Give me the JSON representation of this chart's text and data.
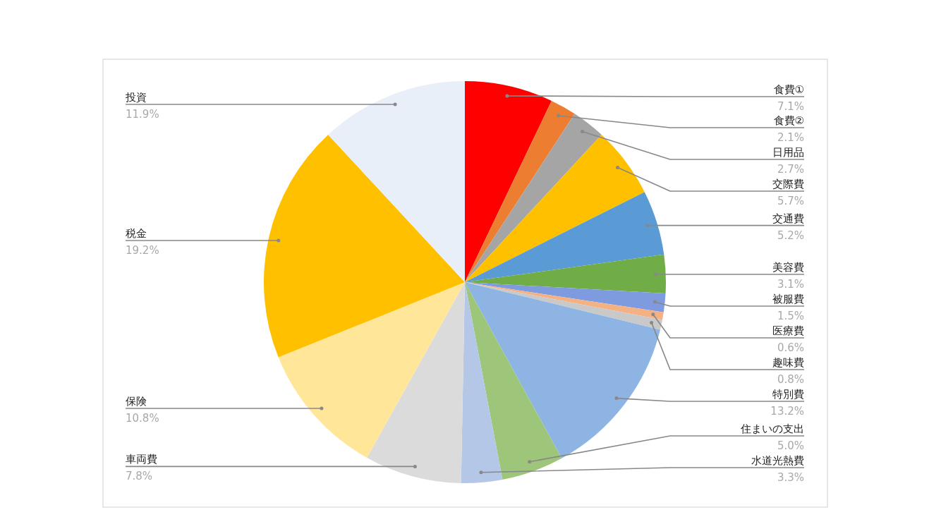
{
  "chart_data": {
    "type": "pie",
    "categories": [
      "食費①",
      "食費②",
      "日用品",
      "交際費",
      "交通費",
      "美容費",
      "被服費",
      "医療費",
      "趣味費",
      "特別費",
      "住まいの支出",
      "水道光熱費",
      "車両費",
      "保険",
      "税金",
      "投資"
    ],
    "values": [
      7.1,
      2.1,
      2.7,
      5.7,
      5.2,
      3.1,
      1.5,
      0.6,
      0.8,
      13.2,
      5.0,
      3.3,
      7.8,
      10.8,
      19.2,
      11.9
    ],
    "value_labels": [
      "7.1%",
      "2.1%",
      "2.7%",
      "5.7%",
      "5.2%",
      "3.1%",
      "1.5%",
      "0.6%",
      "0.8%",
      "13.2%",
      "5.0%",
      "3.3%",
      "7.8%",
      "10.8%",
      "19.2%",
      "11.9%"
    ],
    "colors": [
      "#ff0000",
      "#ed7d31",
      "#a5a5a5",
      "#ffc000",
      "#5b9bd5",
      "#70ad47",
      "#7f9be0",
      "#f4b183",
      "#c9c9c9",
      "#8db4e2",
      "#9dc67a",
      "#b4c7e7",
      "#dbdbdb",
      "#ffe699",
      "#ffc000",
      "#e9eff9"
    ]
  }
}
